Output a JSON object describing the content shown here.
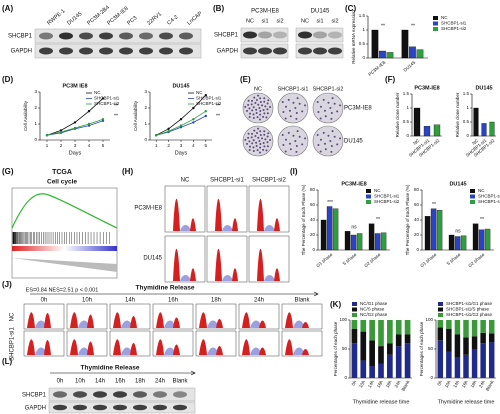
{
  "figure": {
    "panel_labels": [
      "(A)",
      "(B)",
      "(C)",
      "(D)",
      "(E)",
      "(F)",
      "(G)",
      "(H)",
      "(I)",
      "(J)",
      "(K)",
      "(L)"
    ],
    "a": {
      "lanes": [
        "RWPE-1",
        "DU145",
        "PC3M-2B4",
        "PC3M-IE8",
        "PC3",
        "22RV1",
        "C4-2",
        "LnCAP"
      ],
      "rows": [
        "SHCBP1",
        "GAPDH"
      ]
    },
    "b": {
      "groups": [
        "PC3M-IE8",
        "DU145"
      ],
      "lanes": [
        "NC",
        "si1",
        "si2",
        "NC",
        "si1",
        "si2"
      ],
      "rows": [
        "SHCBP1",
        "GAPDH"
      ]
    },
    "e": {
      "columns": [
        "NC",
        "SHCBP1-si1",
        "SHCBP1-si2"
      ],
      "rows": [
        "PC3M-IE8",
        "DU145"
      ]
    },
    "g": {
      "title": "TCGA",
      "subtitle": "Cell cycle",
      "stats": "ES=0.84 NES=2.51 p < 0.001"
    },
    "h": {
      "columns": [
        "NC",
        "SHCBP1-si1",
        "SHCBP1-si2"
      ],
      "rows": [
        "PC3M-IE8",
        "DU145"
      ]
    },
    "j": {
      "header": "Thymidine Release",
      "times": [
        "0h",
        "10h",
        "14h",
        "16h",
        "18h",
        "24h",
        "Blank"
      ],
      "rows": [
        "NC",
        "SHCBP1-si1"
      ]
    },
    "l": {
      "header": "Thymidine Release",
      "times": [
        "0h",
        "10h",
        "14h",
        "16h",
        "18h",
        "24h",
        "Blank"
      ],
      "rows": [
        "SHCBP1",
        "GAPDH"
      ]
    }
  },
  "chart_data": [
    {
      "type": "bar",
      "ylabel": "Relative mRNA expression",
      "categories": [
        "PC3M-IE8",
        "DU145"
      ],
      "series": [
        {
          "name": "NC",
          "color": "#111111",
          "values": [
            1,
            1
          ]
        },
        {
          "name": "SHCBP1-si1",
          "color": "#2a44c4",
          "values": [
            0.25,
            0.4
          ]
        },
        {
          "name": "SHCBP1-si2",
          "color": "#2e9e3e",
          "values": [
            0.2,
            0.3
          ]
        }
      ],
      "ylim": [
        0,
        1.5
      ],
      "yticks": [
        0,
        0.5,
        1,
        1.5
      ],
      "significance": [
        "**",
        "**"
      ],
      "legend": "right"
    },
    {
      "type": "line",
      "title": "PC3M IE8",
      "xlabel": "Days",
      "ylabel": "Cell Availability",
      "x": [
        1,
        2,
        3,
        4,
        5
      ],
      "series": [
        {
          "name": "NC",
          "color": "#111111",
          "values": [
            0.3,
            0.6,
            1.1,
            1.8,
            2.6
          ]
        },
        {
          "name": "SHCBP1-si1",
          "color": "#2a44c4",
          "values": [
            0.3,
            0.45,
            0.7,
            0.9,
            1.2
          ]
        },
        {
          "name": "SHCBP1-si2",
          "color": "#2e9e3e",
          "values": [
            0.3,
            0.5,
            0.75,
            1,
            1.3
          ]
        }
      ],
      "xlim": [
        0.5,
        5.5
      ],
      "xticks": [
        1,
        2,
        3,
        4,
        5
      ],
      "ylim": [
        0,
        3
      ],
      "yticks": [
        0,
        1,
        2,
        3
      ],
      "significance": [
        "**",
        "**"
      ],
      "legend": "upper right"
    },
    {
      "type": "line",
      "title": "DU145",
      "xlabel": "Days",
      "ylabel": "Cell Availability",
      "x": [
        1,
        2,
        3,
        4,
        5
      ],
      "series": [
        {
          "name": "NC",
          "color": "#111111",
          "values": [
            0.3,
            0.7,
            1.3,
            2,
            2.8
          ]
        },
        {
          "name": "SHCBP1-si1",
          "color": "#2a44c4",
          "values": [
            0.3,
            0.5,
            0.8,
            1.1,
            1.5
          ]
        },
        {
          "name": "SHCBP1-si2",
          "color": "#2e9e3e",
          "values": [
            0.3,
            0.55,
            0.9,
            1.3,
            1.8
          ]
        }
      ],
      "xlim": [
        0.5,
        5.5
      ],
      "xticks": [
        1,
        2,
        3,
        4,
        5
      ],
      "ylim": [
        0,
        3
      ],
      "yticks": [
        0,
        1,
        2,
        3
      ],
      "significance": [
        "**",
        "**"
      ],
      "legend": "upper right"
    },
    {
      "type": "bar",
      "title": "PC3M-IE8",
      "ylabel": "Relative clone number",
      "categories": [
        "NC",
        "SHCBP1-si1",
        "SHCBP1-si2"
      ],
      "values": [
        1,
        0.35,
        0.4
      ],
      "colors": [
        "#111111",
        "#2a44c4",
        "#2e9e3e"
      ],
      "ylim": [
        0,
        1.5
      ],
      "yticks": [
        0,
        0.5,
        1,
        1.5
      ]
    },
    {
      "type": "bar",
      "title": "DU145",
      "ylabel": "Relative clone number",
      "categories": [
        "NC",
        "SHCBP1-si1",
        "SHCBP1-si2"
      ],
      "values": [
        1,
        0.45,
        0.5
      ],
      "colors": [
        "#111111",
        "#2a44c4",
        "#2e9e3e"
      ],
      "ylim": [
        0,
        1.5
      ],
      "yticks": [
        0,
        0.5,
        1,
        1.5
      ]
    },
    {
      "type": "bar",
      "title": "PC3M-IE8",
      "ylabel": "The Percentage of Each Phase (%)",
      "categories": [
        "G1 phase",
        "S phase",
        "G2 phase"
      ],
      "series": [
        {
          "name": "NC",
          "color": "#111111",
          "values": [
            40,
            25,
            35
          ]
        },
        {
          "name": "SHCBP1-si1",
          "color": "#2a44c4",
          "values": [
            58,
            20,
            22
          ]
        },
        {
          "name": "SHCBP1-si2",
          "color": "#2e9e3e",
          "values": [
            55,
            22,
            23
          ]
        }
      ],
      "ylim": [
        0,
        80
      ],
      "yticks": [
        0,
        20,
        40,
        60,
        80
      ],
      "significance": [
        "***",
        "ns",
        "**"
      ],
      "legend": "upper right"
    },
    {
      "type": "bar",
      "title": "DU145",
      "ylabel": "The Percentage of Each Phase (%)",
      "categories": [
        "G1 phase",
        "S phase",
        "G2 phase"
      ],
      "series": [
        {
          "name": "NC",
          "color": "#111111",
          "values": [
            45,
            20,
            35
          ]
        },
        {
          "name": "SHCBP1-si1",
          "color": "#2a44c4",
          "values": [
            55,
            18,
            27
          ]
        },
        {
          "name": "SHCBP1-si2",
          "color": "#2e9e3e",
          "values": [
            53,
            19,
            28
          ]
        }
      ],
      "ylim": [
        0,
        80
      ],
      "yticks": [
        0,
        20,
        40,
        60,
        80
      ],
      "significance": [
        "**",
        "ns",
        "**"
      ],
      "legend": "upper right"
    },
    {
      "type": "stacked",
      "xlabel": "Thymidine release time",
      "ylabel": "Percentages of each phase",
      "categories": [
        "0h",
        "10h",
        "14h",
        "16h",
        "18h",
        "24h",
        "Blank"
      ],
      "series": [
        {
          "name": "NC/G1 phase",
          "color": "#1f2a8a",
          "values": [
            60,
            30,
            20,
            25,
            40,
            55,
            60
          ]
        },
        {
          "name": "NC/S phase",
          "color": "#111111",
          "values": [
            25,
            50,
            45,
            30,
            20,
            20,
            15
          ]
        },
        {
          "name": "NC/G2 phase",
          "color": "#3a9a3a",
          "values": [
            15,
            20,
            35,
            45,
            40,
            25,
            25
          ]
        }
      ],
      "ylim": [
        0,
        100
      ],
      "yticks": [
        0,
        50,
        100
      ],
      "legend": "top"
    },
    {
      "type": "stacked",
      "xlabel": "Thymidine release time",
      "ylabel": "Percentages of each phase",
      "categories": [
        "0h",
        "10h",
        "14h",
        "16h",
        "18h",
        "24h",
        "Blank"
      ],
      "series": [
        {
          "name": "SHCBP1-si1/G1 phase",
          "color": "#1f2a8a",
          "values": [
            65,
            45,
            35,
            40,
            50,
            60,
            62
          ]
        },
        {
          "name": "SHCBP1-si1/S phase",
          "color": "#111111",
          "values": [
            22,
            40,
            40,
            30,
            22,
            18,
            15
          ]
        },
        {
          "name": "SHCBP1-si1/G2 phase",
          "color": "#3a9a3a",
          "values": [
            13,
            15,
            25,
            30,
            28,
            22,
            23
          ]
        }
      ],
      "ylim": [
        0,
        100
      ],
      "yticks": [
        0,
        50,
        100
      ],
      "legend": "top"
    }
  ]
}
